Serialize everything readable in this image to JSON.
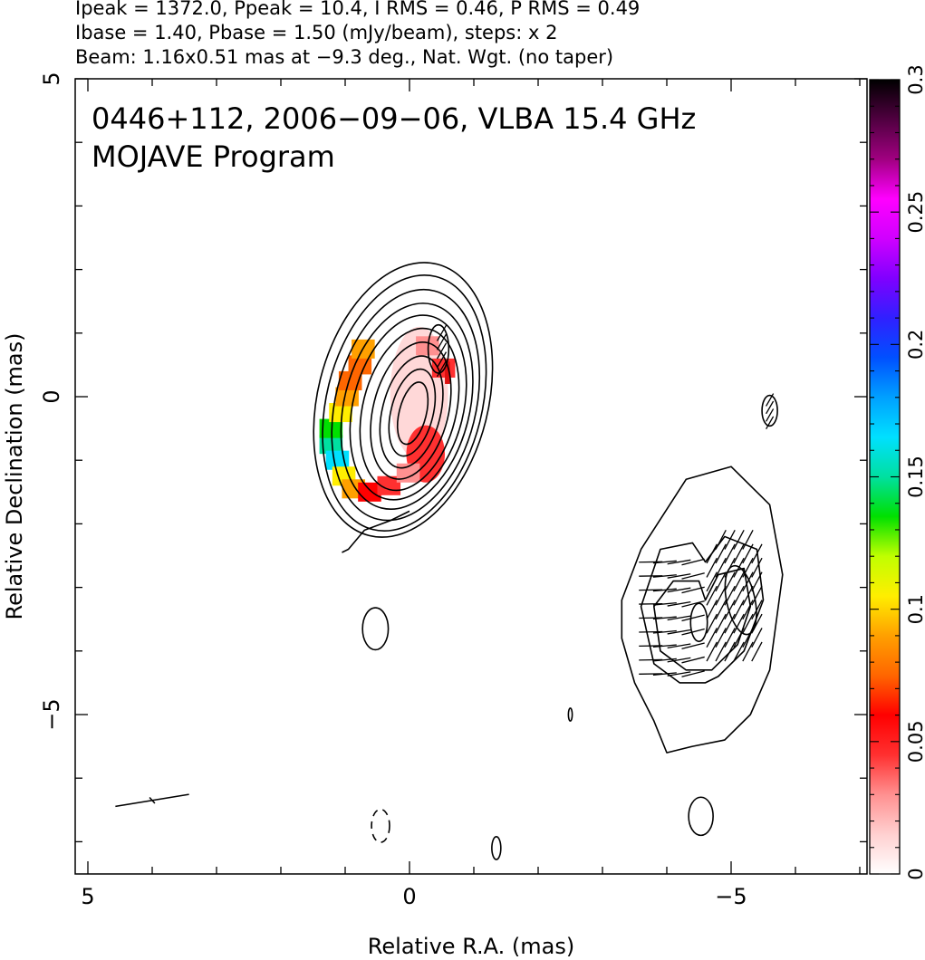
{
  "header": {
    "line1": "Ipeak = 1372.0, Ppeak = 10.4, I RMS = 0.46, P RMS = 0.49",
    "line2": "Ibase = 1.40, Pbase = 1.50 (mJy/beam), steps: x 2",
    "line3": "Beam: 1.16x0.51 mas at −9.3 deg., Nat. Wgt. (no taper)"
  },
  "chart_data": {
    "type": "heatmap",
    "title": "0446+112, 2006−09−06, VLBA 15.4 GHz",
    "subtitle": "MOJAVE Program",
    "xlabel": "Relative R.A. (mas)",
    "ylabel": "Relative Declination (mas)",
    "xlim": [
      5.0,
      -7.2
    ],
    "ylim": [
      -7.3,
      5.0
    ],
    "x_ticks": [
      5,
      0,
      -5
    ],
    "x_tick_labels": [
      "5",
      "0",
      "−5"
    ],
    "y_ticks": [
      5,
      0,
      -5
    ],
    "y_tick_labels": [
      "5",
      "0",
      "−5"
    ],
    "grid": false,
    "colorbar": {
      "label_ticks": [
        0,
        0.05,
        0.1,
        0.15,
        0.2,
        0.25,
        0.3
      ],
      "label_texts": [
        "0",
        "0.05",
        "0.1",
        "0.15",
        "0.2",
        "0.25",
        "0.3"
      ],
      "range": [
        0,
        0.3
      ],
      "colors": [
        "#ffffff",
        "#ffd0d0",
        "#ff9090",
        "#ff3030",
        "#ff0000",
        "#ff6600",
        "#ffa000",
        "#ffee00",
        "#c0ff00",
        "#00e000",
        "#00e0a0",
        "#00e0ff",
        "#00a0ff",
        "#0050ff",
        "#3020ff",
        "#8000ff",
        "#d000ff",
        "#ff00ff",
        "#a00080",
        "#500040",
        "#000000"
      ]
    },
    "core_contours": {
      "center": [
        0.0,
        -0.2
      ],
      "levels": [
        {
          "rx": 1.7,
          "ry": 2.2,
          "dx": 0.1,
          "dy": 0.15
        },
        {
          "rx": 1.55,
          "ry": 2.05,
          "dx": 0.08,
          "dy": 0.1
        },
        {
          "rx": 1.4,
          "ry": 1.85,
          "dx": 0.06,
          "dy": 0.07
        },
        {
          "rx": 1.25,
          "ry": 1.65,
          "dx": 0.04,
          "dy": 0.05
        },
        {
          "rx": 1.1,
          "ry": 1.48,
          "dx": 0.02,
          "dy": 0.03
        },
        {
          "rx": 0.93,
          "ry": 1.3,
          "dx": 0.0,
          "dy": 0.0
        },
        {
          "rx": 0.75,
          "ry": 1.1,
          "dx": -0.02,
          "dy": -0.02
        },
        {
          "rx": 0.58,
          "ry": 0.9,
          "dx": -0.03,
          "dy": -0.04
        },
        {
          "rx": 0.42,
          "ry": 0.7,
          "dx": -0.04,
          "dy": -0.05
        },
        {
          "rx": 0.27,
          "ry": 0.5,
          "dx": -0.05,
          "dy": -0.06
        }
      ]
    },
    "polarization_pixels": [
      {
        "ra": 1.2,
        "dec": -0.75,
        "v": 0.15
      },
      {
        "ra": 1.2,
        "dec": -0.5,
        "v": 0.13
      },
      {
        "ra": 1.1,
        "dec": -1.0,
        "v": 0.17
      },
      {
        "ra": 1.05,
        "dec": -0.25,
        "v": 0.11
      },
      {
        "ra": 1.0,
        "dec": -1.25,
        "v": 0.1
      },
      {
        "ra": 0.95,
        "dec": 0.0,
        "v": 0.09
      },
      {
        "ra": 0.9,
        "dec": 0.25,
        "v": 0.08
      },
      {
        "ra": 0.85,
        "dec": -1.45,
        "v": 0.09
      },
      {
        "ra": 0.75,
        "dec": 0.5,
        "v": 0.075
      },
      {
        "ra": 0.7,
        "dec": 0.75,
        "v": 0.095
      },
      {
        "ra": 0.6,
        "dec": -1.5,
        "v": 0.06
      },
      {
        "ra": 0.3,
        "dec": -1.4,
        "v": 0.04
      },
      {
        "ra": 0.0,
        "dec": -1.2,
        "v": 0.035
      },
      {
        "ra": -0.3,
        "dec": 0.8,
        "v": 0.03
      },
      {
        "ra": -0.55,
        "dec": 0.45,
        "v": 0.04
      }
    ],
    "jet_contours": {
      "outer": [
        [
          -3.3,
          -3.2
        ],
        [
          -3.6,
          -2.4
        ],
        [
          -4.3,
          -1.3
        ],
        [
          -5.0,
          -1.1
        ],
        [
          -5.6,
          -1.7
        ],
        [
          -5.8,
          -2.8
        ],
        [
          -5.6,
          -4.3
        ],
        [
          -5.3,
          -5.0
        ],
        [
          -4.9,
          -5.4
        ],
        [
          -4.4,
          -5.5
        ],
        [
          -4.0,
          -5.6
        ],
        [
          -3.8,
          -5.1
        ],
        [
          -3.5,
          -4.5
        ],
        [
          -3.3,
          -3.8
        ]
      ],
      "inner1": [
        [
          -3.6,
          -3.3
        ],
        [
          -3.9,
          -2.4
        ],
        [
          -4.4,
          -2.3
        ],
        [
          -4.6,
          -2.6
        ],
        [
          -4.9,
          -2.2
        ],
        [
          -5.4,
          -2.4
        ],
        [
          -5.5,
          -3.2
        ],
        [
          -5.2,
          -4.0
        ],
        [
          -4.8,
          -4.4
        ],
        [
          -4.6,
          -4.5
        ],
        [
          -4.2,
          -4.5
        ],
        [
          -3.8,
          -4.2
        ]
      ],
      "inner2": [
        [
          -3.8,
          -3.3
        ],
        [
          -4.1,
          -2.9
        ],
        [
          -4.5,
          -2.9
        ],
        [
          -4.6,
          -3.2
        ],
        [
          -4.8,
          -2.8
        ],
        [
          -5.2,
          -2.7
        ],
        [
          -5.3,
          -3.3
        ],
        [
          -5.1,
          -3.9
        ],
        [
          -4.7,
          -4.3
        ],
        [
          -4.3,
          -4.3
        ],
        [
          -3.9,
          -4.0
        ]
      ],
      "peak1": {
        "ra": -5.15,
        "dec": -3.2,
        "rx": 0.22,
        "ry": 0.55
      },
      "peak2": {
        "ra": -4.5,
        "dec": -3.55,
        "rx": 0.13,
        "ry": 0.3
      }
    },
    "small_contours": [
      {
        "ra": 0.53,
        "dec": -3.65,
        "rx": 0.2,
        "ry": 0.33,
        "dashed": false
      },
      {
        "ra": 0.45,
        "dec": -6.75,
        "rx": 0.14,
        "ry": 0.26,
        "dashed": true
      },
      {
        "ra": -4.53,
        "dec": -6.6,
        "rx": 0.19,
        "ry": 0.3,
        "dashed": false
      },
      {
        "ra": -1.35,
        "dec": -7.1,
        "rx": 0.07,
        "ry": 0.18,
        "dashed": false
      },
      {
        "ra": -5.6,
        "dec": -0.22,
        "rx": 0.12,
        "ry": 0.24,
        "dashed": false
      },
      {
        "ra": -0.45,
        "dec": 0.75,
        "rx": 0.16,
        "ry": 0.38,
        "dashed": false
      },
      {
        "ra": -2.5,
        "dec": -5.0,
        "rx": 0.03,
        "ry": 0.1,
        "dashed": false
      }
    ],
    "beam": {
      "ra": 4.0,
      "dec": -6.35,
      "major": 1.16,
      "minor": 0.51,
      "pa_deg": -9.3
    }
  }
}
